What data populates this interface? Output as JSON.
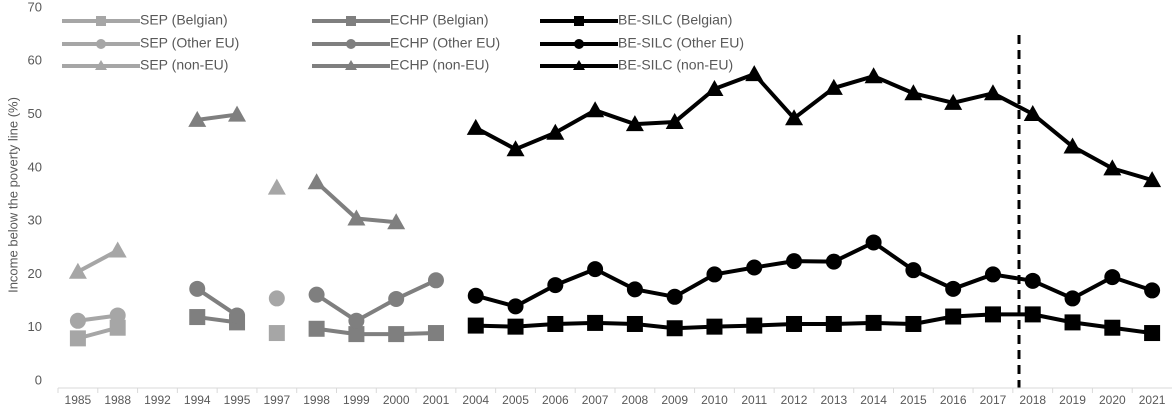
{
  "chart_data": {
    "type": "line",
    "y_label": "Income below the poverty line (%)",
    "categories": [
      "1985",
      "1988",
      "1992",
      "1994",
      "1995",
      "1997",
      "1998",
      "1999",
      "2000",
      "2001",
      "2004",
      "2005",
      "2006",
      "2007",
      "2008",
      "2009",
      "2010",
      "2011",
      "2012",
      "2013",
      "2014",
      "2015",
      "2016",
      "2017",
      "2018",
      "2019",
      "2020",
      "2021"
    ],
    "ylim": [
      0,
      70
    ],
    "yticks": [
      0,
      10,
      20,
      30,
      40,
      50,
      60,
      70
    ],
    "series": [
      {
        "name": "SEP (Belgian)",
        "color": "#a6a6a6",
        "marker": "square",
        "values": [
          8,
          10,
          null,
          null,
          null,
          9,
          null,
          null,
          null,
          null,
          null,
          null,
          null,
          null,
          null,
          null,
          null,
          null,
          null,
          null,
          null,
          null,
          null,
          null,
          null,
          null,
          null,
          null
        ]
      },
      {
        "name": "ECHP (Belgian)",
        "color": "#7f7f7f",
        "marker": "square",
        "values": [
          null,
          null,
          null,
          12,
          11,
          null,
          9.8,
          8.8,
          8.8,
          9,
          null,
          null,
          null,
          null,
          null,
          null,
          null,
          null,
          null,
          null,
          null,
          null,
          null,
          null,
          null,
          null,
          null,
          null
        ]
      },
      {
        "name": "BE-SILC (Belgian)",
        "color": "#000000",
        "marker": "square",
        "values": [
          null,
          null,
          null,
          null,
          null,
          null,
          null,
          null,
          null,
          null,
          10.4,
          10.2,
          10.7,
          10.9,
          10.7,
          9.9,
          10.2,
          10.4,
          10.7,
          10.7,
          10.9,
          10.7,
          12.1,
          12.5,
          12.5,
          11,
          10,
          9
        ]
      },
      {
        "name": "SEP (Other EU)",
        "color": "#a6a6a6",
        "marker": "circle",
        "values": [
          11.3,
          12.3,
          null,
          null,
          null,
          15.5,
          null,
          null,
          null,
          null,
          null,
          null,
          null,
          null,
          null,
          null,
          null,
          null,
          null,
          null,
          null,
          null,
          null,
          null,
          null,
          null,
          null,
          null
        ]
      },
      {
        "name": "ECHP (Other EU)",
        "color": "#7f7f7f",
        "marker": "circle",
        "values": [
          null,
          null,
          null,
          17.3,
          12.3,
          null,
          16.2,
          11.3,
          15.4,
          18.9,
          null,
          null,
          null,
          null,
          null,
          null,
          null,
          null,
          null,
          null,
          null,
          null,
          null,
          null,
          null,
          null,
          null,
          null
        ]
      },
      {
        "name": "BE-SILC (Other EU)",
        "color": "#000000",
        "marker": "circle",
        "values": [
          null,
          null,
          null,
          null,
          null,
          null,
          null,
          null,
          null,
          null,
          16,
          14,
          18,
          21,
          17.2,
          15.8,
          20,
          21.3,
          22.5,
          22.4,
          26,
          20.8,
          17.3,
          20,
          18.8,
          15.5,
          19.5,
          17
        ]
      },
      {
        "name": "SEP (non-EU)",
        "color": "#a6a6a6",
        "marker": "triangle",
        "values": [
          20.5,
          24.5,
          null,
          null,
          null,
          36.3,
          null,
          null,
          null,
          null,
          null,
          null,
          null,
          null,
          null,
          null,
          null,
          null,
          null,
          null,
          null,
          null,
          null,
          null,
          null,
          null,
          null,
          null
        ]
      },
      {
        "name": "ECHP (non-EU)",
        "color": "#7f7f7f",
        "marker": "triangle",
        "values": [
          null,
          null,
          null,
          49,
          50,
          null,
          37.3,
          30.5,
          29.8,
          null,
          null,
          null,
          null,
          null,
          null,
          null,
          null,
          null,
          null,
          null,
          null,
          null,
          null,
          null,
          null,
          null,
          null,
          null
        ]
      },
      {
        "name": "BE-SILC (non-EU)",
        "color": "#000000",
        "marker": "triangle",
        "values": [
          null,
          null,
          null,
          null,
          null,
          null,
          null,
          null,
          null,
          null,
          47.5,
          43.5,
          46.6,
          50.8,
          48.2,
          48.6,
          54.8,
          57.6,
          49.3,
          55,
          57.2,
          54,
          52.2,
          54,
          50.1,
          44,
          39.9,
          37.7
        ]
      }
    ]
  }
}
